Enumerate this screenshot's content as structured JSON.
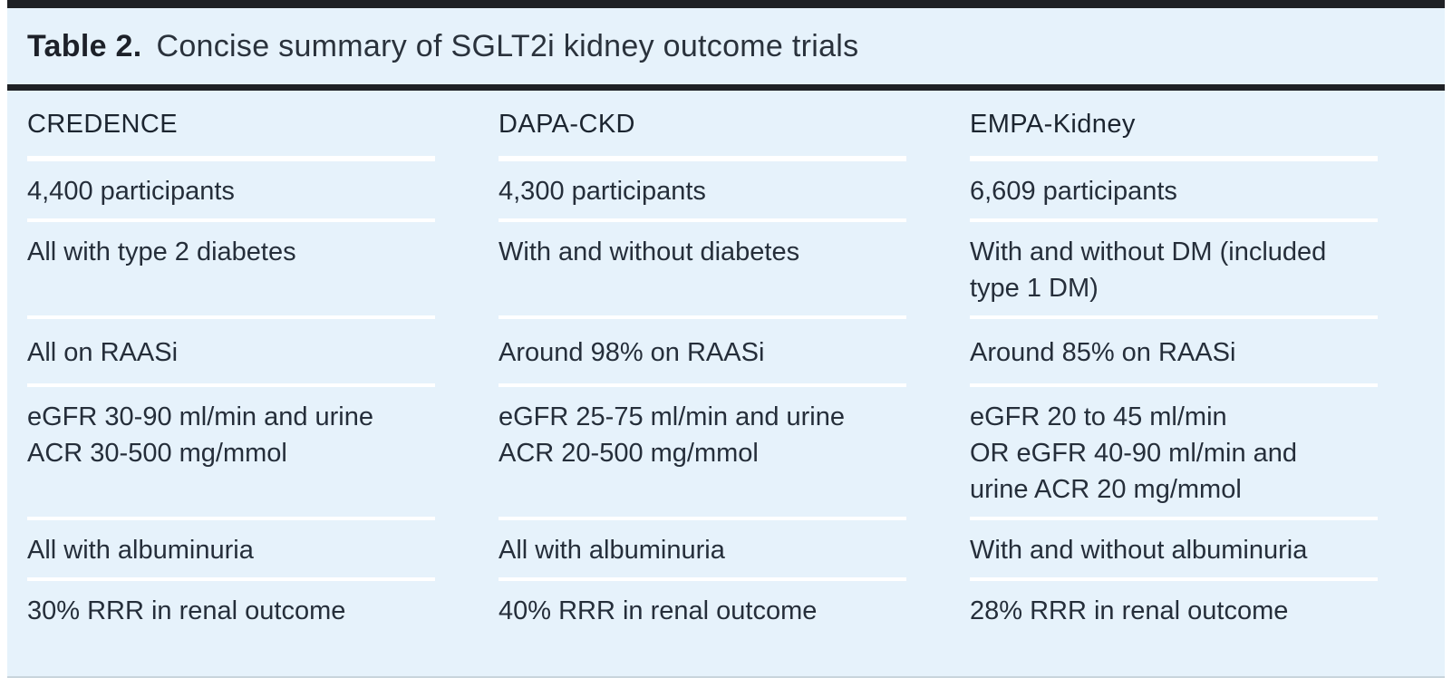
{
  "title": {
    "label": "Table 2.",
    "text": "Concise summary of SGLT2i kidney outcome trials"
  },
  "table": {
    "columns": [
      "CREDENCE",
      "DAPA-CKD",
      "EMPA-Kidney"
    ],
    "rows": [
      [
        "4,400 participants",
        "4,300 participants",
        "6,609 participants"
      ],
      [
        "All with type 2 diabetes",
        "With and without diabetes",
        "With and without DM (included\ntype 1 DM)"
      ],
      [
        "All on RAASi",
        "Around 98% on RAASi",
        "Around 85% on RAASi"
      ],
      [
        "eGFR 30-90 ml/min and urine\nACR 30-500 mg/mmol",
        "eGFR 25-75 ml/min and urine\nACR 20-500 mg/mmol",
        "eGFR 20 to 45 ml/min\nOR eGFR 40-90 ml/min and\nurine ACR 20 mg/mmol"
      ],
      [
        "All with albuminuria",
        "All with albuminuria",
        "With and without albuminuria"
      ],
      [
        "30% RRR in renal outcome",
        "40% RRR in renal outcome",
        "28% RRR in renal outcome"
      ]
    ]
  },
  "colors": {
    "panel_background": "#e6f2fb",
    "rule_black": "#1f2125",
    "separator_white": "#ffffff",
    "body_text": "#252e3a",
    "bottom_line": "#c9d5dc"
  }
}
